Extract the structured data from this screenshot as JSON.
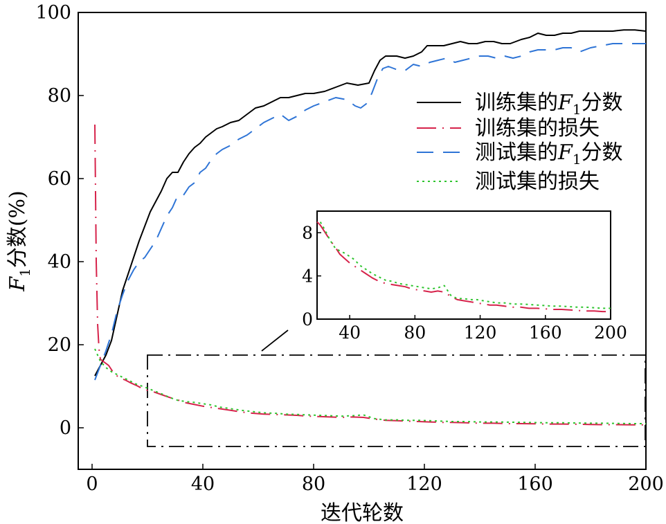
{
  "chart_data": {
    "type": "line",
    "xlabel": "迭代轮数",
    "ylabel": "分数(%)",
    "ylabel_symbol": "F",
    "ylabel_subscript": "1",
    "xlim": [
      -5,
      200
    ],
    "ylim": [
      -10,
      100
    ],
    "xticks": [
      0,
      40,
      80,
      120,
      160,
      200
    ],
    "yticks": [
      0,
      20,
      40,
      60,
      80,
      100
    ],
    "grid": false,
    "legend_position": "right",
    "series": [
      {
        "name": "训练集的F1分数",
        "name_prefix": "训练集的",
        "name_symbol": "F",
        "name_subscript": "1",
        "name_suffix": "分数",
        "style": "solid",
        "color": "#000000",
        "x": [
          1,
          3,
          5,
          7,
          9,
          11,
          13,
          15,
          17,
          19,
          21,
          23,
          25,
          27,
          29,
          31,
          33,
          35,
          37,
          39,
          41,
          43,
          45,
          47,
          50,
          53,
          56,
          59,
          62,
          65,
          68,
          71,
          74,
          77,
          80,
          84,
          88,
          92,
          96,
          100,
          102,
          104,
          106,
          108,
          110,
          113,
          116,
          119,
          121,
          123,
          125,
          127,
          130,
          133,
          136,
          139,
          142,
          145,
          148,
          151,
          155,
          158,
          161,
          164,
          167,
          170,
          173,
          176,
          180,
          184,
          188,
          192,
          196,
          200
        ],
        "values": [
          12.5,
          15,
          17.5,
          21,
          27,
          33,
          37,
          41,
          45,
          48.5,
          52,
          54.5,
          57,
          60,
          61.5,
          61.5,
          64,
          66,
          67.5,
          68.5,
          70,
          71,
          72,
          72.5,
          73.5,
          74,
          75.5,
          77,
          77.5,
          78.5,
          79.5,
          79.5,
          80,
          80.5,
          80.5,
          81,
          82,
          83,
          82.5,
          83,
          86,
          88.5,
          89.5,
          89.5,
          89.5,
          89,
          89.5,
          90.5,
          92,
          92,
          92,
          92,
          92.5,
          93,
          92.5,
          92.5,
          93,
          93,
          92.5,
          92.5,
          93.5,
          94,
          95,
          94.5,
          94.5,
          95,
          95,
          95.5,
          95.5,
          95.5,
          95.5,
          95.8,
          95.8,
          95.5
        ]
      },
      {
        "name": "训练集的损失",
        "style": "dashdot",
        "color": "#d6224a",
        "x": [
          1,
          1.5,
          2,
          2.5,
          3,
          4,
          5,
          6,
          7,
          8,
          10,
          12,
          14,
          16,
          18,
          20,
          22,
          25,
          28,
          31,
          34,
          37,
          40,
          43,
          46,
          50,
          54,
          58,
          62,
          66,
          70,
          74,
          78,
          82,
          86,
          90,
          94,
          98,
          102,
          106,
          110,
          114,
          118,
          122,
          126,
          130,
          135,
          140,
          145,
          150,
          155,
          160,
          165,
          170,
          175,
          180,
          185,
          190,
          195,
          200
        ],
        "values": [
          73,
          40,
          25,
          19,
          16.5,
          16,
          15.5,
          15,
          14,
          13,
          12,
          11.5,
          10.8,
          10.2,
          9.5,
          9,
          8.7,
          8,
          7.3,
          6.7,
          6,
          5.6,
          5.2,
          4.9,
          4.6,
          4.2,
          3.8,
          3.5,
          3.3,
          3.2,
          3.1,
          3,
          2.8,
          2.7,
          2.6,
          2.5,
          2.6,
          2.5,
          2.1,
          1.8,
          1.7,
          1.6,
          1.5,
          1.4,
          1.3,
          1.3,
          1.2,
          1.1,
          1.1,
          1,
          1,
          0.95,
          0.9,
          0.9,
          0.85,
          0.8,
          0.75,
          0.75,
          0.7,
          0.7
        ]
      },
      {
        "name": "测试集的F1分数",
        "name_prefix": "测试集的",
        "name_symbol": "F",
        "name_subscript": "1",
        "name_suffix": "分数",
        "style": "dashed",
        "color": "#2e74d6",
        "x": [
          1,
          3,
          5,
          7,
          9,
          11,
          13,
          15,
          17,
          19,
          21,
          23,
          25,
          27,
          29,
          31,
          33,
          35,
          37,
          39,
          41,
          43,
          45,
          47,
          50,
          53,
          56,
          59,
          62,
          65,
          68,
          71,
          74,
          77,
          80,
          84,
          88,
          92,
          95,
          97,
          99,
          101,
          103,
          105,
          107,
          109,
          111,
          113,
          116,
          119,
          122,
          125,
          128,
          131,
          134,
          137,
          140,
          143,
          146,
          149,
          152,
          155,
          158,
          161,
          164,
          167,
          170,
          173,
          176,
          180,
          184,
          188,
          192,
          196,
          200
        ],
        "values": [
          11.5,
          15,
          18.5,
          22.5,
          28,
          32,
          35.5,
          38,
          40,
          41,
          43,
          45,
          48,
          51,
          53,
          56,
          56,
          58,
          59,
          61.5,
          62.5,
          64.5,
          66,
          67,
          68,
          69.5,
          70.5,
          72,
          73.5,
          74.5,
          75.5,
          74,
          75,
          76.5,
          77.5,
          78.5,
          79.5,
          79,
          77.5,
          77,
          78,
          80.5,
          84,
          86.5,
          87,
          86.5,
          86,
          86,
          87.5,
          87,
          88,
          88.5,
          89,
          88,
          88.5,
          89,
          89.5,
          89.5,
          89,
          89.5,
          89,
          89.5,
          90.5,
          91,
          91,
          91,
          91.5,
          91.5,
          90.5,
          91.5,
          92,
          92.5,
          92.5,
          92.5,
          92.5
        ]
      },
      {
        "name": "测试集的损失",
        "style": "dotted",
        "color": "#2ec42e",
        "x": [
          1,
          3,
          5,
          7,
          10,
          13,
          16,
          19,
          22,
          25,
          28,
          31,
          34,
          37,
          40,
          43,
          46,
          50,
          54,
          58,
          62,
          66,
          70,
          74,
          78,
          82,
          86,
          90,
          94,
          98,
          102,
          106,
          110,
          114,
          118,
          122,
          126,
          130,
          135,
          140,
          145,
          150,
          155,
          160,
          165,
          170,
          175,
          180,
          185,
          190,
          195,
          200
        ],
        "values": [
          19,
          16,
          14.5,
          13.5,
          12.5,
          11.5,
          10.5,
          9.8,
          9,
          8.2,
          7.3,
          6.6,
          6.3,
          6.1,
          5.8,
          5.5,
          5,
          4.6,
          4.2,
          3.9,
          3.6,
          3.5,
          3.3,
          3.2,
          3.1,
          3,
          2.9,
          2.8,
          2.9,
          3.1,
          2.2,
          1.9,
          1.9,
          1.8,
          1.8,
          1.7,
          1.6,
          1.5,
          1.5,
          1.4,
          1.4,
          1.35,
          1.3,
          1.25,
          1.2,
          1.2,
          1.15,
          1.1,
          1.1,
          1.05,
          1,
          1
        ]
      }
    ],
    "inset": {
      "xlim": [
        20,
        200
      ],
      "ylim": [
        0,
        10
      ],
      "xticks": [
        40,
        80,
        120,
        160,
        200
      ],
      "yticks": [
        0,
        4,
        8
      ],
      "series_shown": [
        "训练集的损失",
        "测试集的损失"
      ],
      "zoom_region": {
        "x": [
          20,
          200
        ],
        "y": [
          -4.5,
          17.5
        ]
      }
    }
  }
}
